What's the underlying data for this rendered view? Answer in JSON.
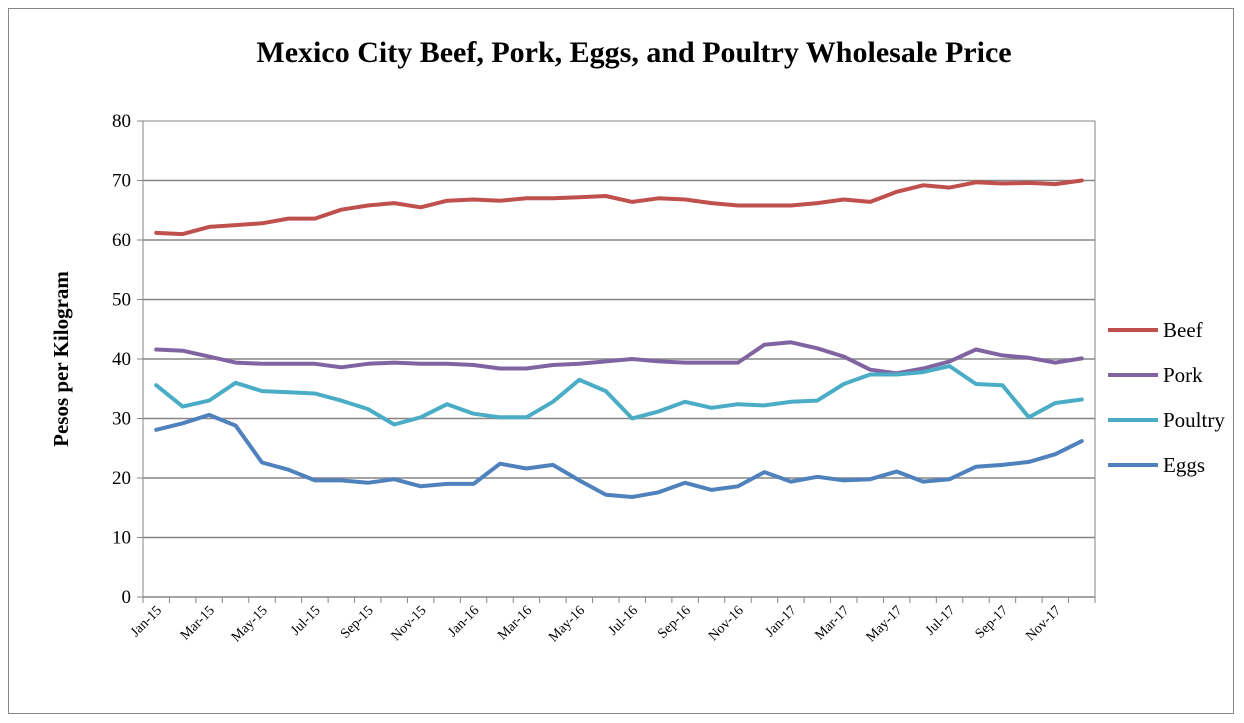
{
  "chart_data": {
    "type": "line",
    "title": "Mexico City Beef, Pork, Eggs, and Poultry Wholesale Price",
    "ylabel": "Pesos per Kilogram",
    "xlabel": "",
    "ylim": [
      0,
      80
    ],
    "yticks": [
      0,
      10,
      20,
      30,
      40,
      50,
      60,
      70,
      80
    ],
    "grid": true,
    "legend_position": "right",
    "x": [
      "Jan-15",
      "Feb-15",
      "Mar-15",
      "Apr-15",
      "May-15",
      "Jun-15",
      "Jul-15",
      "Aug-15",
      "Sep-15",
      "Oct-15",
      "Nov-15",
      "Dec-15",
      "Jan-16",
      "Feb-16",
      "Mar-16",
      "Apr-16",
      "May-16",
      "Jun-16",
      "Jul-16",
      "Aug-16",
      "Sep-16",
      "Oct-16",
      "Nov-16",
      "Dec-16",
      "Jan-17",
      "Feb-17",
      "Mar-17",
      "Apr-17",
      "May-17",
      "Jun-17",
      "Jul-17",
      "Aug-17",
      "Sep-17",
      "Oct-17",
      "Nov-17",
      "Dec-17"
    ],
    "xtick_labels": [
      "Jan-15",
      "Mar-15",
      "May-15",
      "Jul-15",
      "Sep-15",
      "Nov-15",
      "Jan-16",
      "Mar-16",
      "May-16",
      "Jul-16",
      "Sep-16",
      "Nov-16",
      "Jan-17",
      "Mar-17",
      "May-17",
      "Jul-17",
      "Sep-17",
      "Nov-17"
    ],
    "series": [
      {
        "name": "Beef",
        "color": "#c0504d",
        "values": [
          61.2,
          61.0,
          62.2,
          62.5,
          62.8,
          63.6,
          63.6,
          65.1,
          65.8,
          66.2,
          65.5,
          66.6,
          66.8,
          66.6,
          67.0,
          67.0,
          67.2,
          67.4,
          66.4,
          67.0,
          66.8,
          66.2,
          65.8,
          65.8,
          65.8,
          66.2,
          66.8,
          66.4,
          68.1,
          69.2,
          68.8,
          69.7,
          69.5,
          69.6,
          69.4,
          70.0
        ]
      },
      {
        "name": "Pork",
        "color": "#8064a2",
        "values": [
          41.6,
          41.4,
          40.4,
          39.4,
          39.2,
          39.2,
          39.2,
          38.6,
          39.2,
          39.4,
          39.2,
          39.2,
          39.0,
          38.4,
          38.4,
          39.0,
          39.2,
          39.6,
          40.0,
          39.6,
          39.4,
          39.4,
          39.4,
          42.4,
          42.8,
          41.8,
          40.4,
          38.2,
          37.6,
          38.4,
          39.6,
          41.6,
          40.6,
          40.2,
          39.4,
          40.1
        ]
      },
      {
        "name": "Poultry",
        "color": "#4bacc6",
        "values": [
          35.6,
          32.0,
          33.0,
          36.0,
          34.6,
          34.4,
          34.2,
          33.0,
          31.6,
          29.0,
          30.2,
          32.4,
          30.8,
          30.2,
          30.2,
          32.8,
          36.5,
          34.6,
          30.0,
          31.2,
          32.8,
          31.8,
          32.4,
          32.2,
          32.8,
          33.0,
          35.8,
          37.4,
          37.4,
          37.8,
          38.8,
          35.8,
          35.6,
          30.2,
          32.6,
          33.2
        ]
      },
      {
        "name": "Eggs",
        "color": "#4f81bd",
        "values": [
          28.1,
          29.2,
          30.6,
          28.8,
          22.6,
          21.4,
          19.6,
          19.6,
          19.2,
          19.8,
          18.6,
          19.0,
          19.0,
          22.4,
          21.6,
          22.2,
          19.6,
          17.2,
          16.8,
          17.6,
          19.2,
          18.0,
          18.6,
          21.0,
          19.4,
          20.2,
          19.6,
          19.8,
          21.1,
          19.4,
          19.8,
          21.9,
          22.2,
          22.7,
          24.0,
          26.2
        ]
      }
    ]
  }
}
